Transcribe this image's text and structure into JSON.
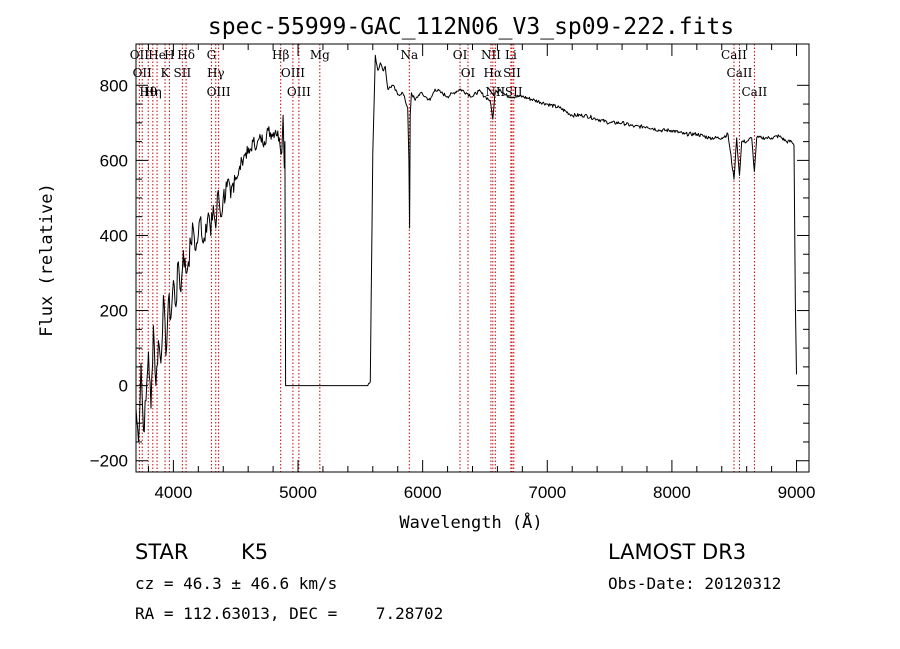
{
  "chart_data": {
    "type": "line",
    "title": "spec-55999-GAC_112N06_V3_sp09-222.fits",
    "xlabel": "Wavelength (Å)",
    "ylabel": "Flux (relative)",
    "xlim": [
      3700,
      9100
    ],
    "ylim": [
      -230,
      910
    ],
    "xticks": [
      4000,
      5000,
      6000,
      7000,
      8000,
      9000
    ],
    "yticks": [
      -200,
      0,
      200,
      400,
      600,
      800
    ],
    "grid": false,
    "series": [
      {
        "color": "#000000",
        "x": [
          3700,
          3720,
          3740,
          3760,
          3780,
          3800,
          3820,
          3840,
          3860,
          3880,
          3900,
          3920,
          3940,
          3960,
          3980,
          4000,
          4020,
          4040,
          4060,
          4080,
          4100,
          4120,
          4140,
          4160,
          4180,
          4200,
          4220,
          4240,
          4260,
          4280,
          4300,
          4320,
          4340,
          4360,
          4380,
          4400,
          4430,
          4460,
          4490,
          4520,
          4550,
          4580,
          4610,
          4640,
          4670,
          4700,
          4730,
          4760,
          4790,
          4820,
          4850,
          4870,
          4880,
          4890,
          4895,
          4900,
          5000,
          5100,
          5200,
          5300,
          5400,
          5500,
          5560,
          5580,
          5600,
          5620,
          5640,
          5660,
          5680,
          5700,
          5720,
          5760,
          5800,
          5840,
          5860,
          5880,
          5890,
          5895,
          5900,
          5910,
          5940,
          5980,
          6020,
          6060,
          6100,
          6150,
          6200,
          6250,
          6300,
          6350,
          6400,
          6450,
          6500,
          6540,
          6563,
          6580,
          6620,
          6660,
          6700,
          6750,
          6800,
          6900,
          7000,
          7100,
          7200,
          7300,
          7400,
          7500,
          7600,
          7700,
          7800,
          7900,
          8000,
          8100,
          8200,
          8300,
          8400,
          8450,
          8498,
          8520,
          8542,
          8560,
          8600,
          8640,
          8662,
          8680,
          8720,
          8760,
          8800,
          8860,
          8920,
          8960,
          8980,
          8990,
          9000
        ],
        "y": [
          -60,
          -150,
          60,
          -120,
          -40,
          90,
          -60,
          160,
          0,
          120,
          60,
          240,
          80,
          230,
          180,
          280,
          210,
          330,
          250,
          360,
          300,
          330,
          380,
          420,
          360,
          400,
          450,
          380,
          430,
          460,
          400,
          480,
          420,
          520,
          450,
          500,
          530,
          500,
          560,
          560,
          600,
          620,
          620,
          650,
          640,
          660,
          650,
          680,
          670,
          680,
          660,
          620,
          720,
          580,
          650,
          0,
          0,
          0,
          0,
          0,
          0,
          0,
          0,
          10,
          620,
          880,
          840,
          860,
          840,
          850,
          790,
          800,
          775,
          780,
          760,
          740,
          600,
          420,
          720,
          780,
          760,
          780,
          770,
          760,
          790,
          780,
          770,
          780,
          790,
          780,
          770,
          785,
          770,
          760,
          710,
          780,
          790,
          775,
          770,
          770,
          770,
          760,
          750,
          740,
          720,
          720,
          710,
          700,
          700,
          690,
          690,
          680,
          680,
          670,
          670,
          660,
          660,
          670,
          550,
          660,
          560,
          650,
          650,
          660,
          570,
          660,
          660,
          660,
          660,
          665,
          650,
          650,
          640,
          230,
          30
        ]
      }
    ],
    "lines": [
      {
        "wl": 3727,
        "labels": [
          "OII"
        ]
      },
      {
        "wl": 3750,
        "labels": [
          "OII"
        ]
      },
      {
        "wl": 3798,
        "labels": [
          "Hθ"
        ]
      },
      {
        "wl": 3835,
        "labels": [
          "Hη"
        ]
      },
      {
        "wl": 3869,
        "labels": [
          "He"
        ]
      },
      {
        "wl": 3933,
        "labels": [
          "K"
        ]
      },
      {
        "wl": 3968,
        "labels": [
          "H"
        ]
      },
      {
        "wl": 4072,
        "labels": [
          "SII"
        ]
      },
      {
        "wl": 4102,
        "labels": [
          "Hδ"
        ]
      },
      {
        "wl": 4305,
        "labels": [
          "G"
        ]
      },
      {
        "wl": 4340,
        "labels": [
          "Hγ"
        ]
      },
      {
        "wl": 4363,
        "labels": [
          "OIII"
        ]
      },
      {
        "wl": 4861,
        "labels": [
          "Hβ"
        ]
      },
      {
        "wl": 4959,
        "labels": [
          "OIII"
        ]
      },
      {
        "wl": 5007,
        "labels": [
          "OIII"
        ]
      },
      {
        "wl": 5175,
        "labels": [
          "Mg"
        ]
      },
      {
        "wl": 5893,
        "labels": [
          "Na"
        ]
      },
      {
        "wl": 6300,
        "labels": [
          "OI"
        ]
      },
      {
        "wl": 6364,
        "labels": [
          "OI"
        ]
      },
      {
        "wl": 6548,
        "labels": [
          "NII"
        ]
      },
      {
        "wl": 6563,
        "labels": [
          "Hα"
        ]
      },
      {
        "wl": 6583,
        "labels": [
          "NII"
        ]
      },
      {
        "wl": 6708,
        "labels": [
          "Li"
        ]
      },
      {
        "wl": 6717,
        "labels": [
          "SII"
        ]
      },
      {
        "wl": 6731,
        "labels": [
          "SII"
        ]
      },
      {
        "wl": 8498,
        "labels": [
          "CaII"
        ]
      },
      {
        "wl": 8542,
        "labels": [
          "CaII"
        ]
      },
      {
        "wl": 8662,
        "labels": [
          "CaII"
        ]
      }
    ],
    "line_color": "#cc0000"
  },
  "info": {
    "class_label": "STAR",
    "subclass": "K5",
    "survey": "LAMOST DR3",
    "cz": "cz = 46.3 ± 46.6 km/s",
    "obs_date": "Obs-Date: 20120312",
    "coords": "RA = 112.63013, DEC =    7.28702"
  }
}
